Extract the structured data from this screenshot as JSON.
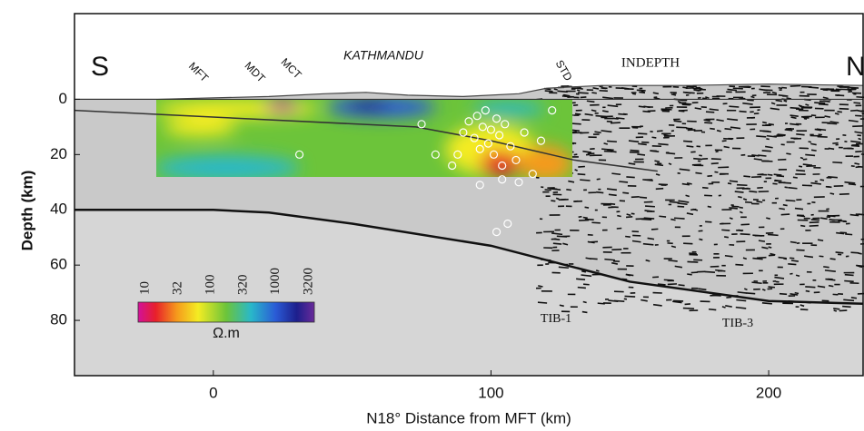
{
  "chart_data": {
    "type": "cross-section",
    "x_label": "N18°  Distance from MFT (km)",
    "y_label": "Depth (km)",
    "xlim": [
      -50,
      234
    ],
    "xticks": [
      0,
      100,
      200
    ],
    "ylim": [
      -31,
      100
    ],
    "y_inverted": true,
    "yticks": [
      0,
      20,
      40,
      60,
      80
    ],
    "annotations": {
      "south": "S",
      "north": "N",
      "mft": "MFT",
      "mdt": "MDT",
      "mct": "MCT",
      "city": "KATHMANDU",
      "std": "STD",
      "profile": "INDEPTH",
      "tib1": "TIB-1",
      "tib3": "TIB-3"
    },
    "topography": {
      "x": [
        -50,
        -20,
        0,
        20,
        40,
        55,
        70,
        90,
        110,
        120,
        140,
        170,
        200,
        234
      ],
      "values": [
        0,
        0,
        -0.5,
        -1,
        -2,
        -2.5,
        -1.5,
        -1,
        -2,
        -4,
        -5,
        -5,
        -5.5,
        -5
      ]
    },
    "moho": {
      "x": [
        -50,
        0,
        20,
        50,
        100,
        150,
        200,
        234
      ],
      "values": [
        40,
        40,
        41,
        45,
        53,
        66,
        73,
        74
      ]
    },
    "thrust": {
      "x": [
        -50,
        73,
        100,
        130,
        160
      ],
      "values": [
        4,
        10,
        15,
        22,
        26
      ]
    },
    "earthquakes": {
      "x": [
        88,
        90,
        92,
        94,
        95,
        96,
        97,
        98,
        99,
        100,
        101,
        102,
        103,
        104,
        105,
        107,
        109,
        112,
        115,
        118,
        80,
        86,
        96,
        104,
        110,
        102,
        106,
        31,
        75,
        122
      ],
      "depth": [
        20,
        12,
        8,
        14,
        6,
        18,
        10,
        4,
        16,
        11,
        20,
        7,
        13,
        24,
        9,
        17,
        22,
        12,
        27,
        15,
        20,
        24,
        31,
        29,
        30,
        48,
        45,
        20,
        9,
        4
      ]
    },
    "colorbar": {
      "labels": [
        10,
        32,
        100,
        320,
        1000,
        3200
      ],
      "unit": "Ω.m"
    }
  }
}
